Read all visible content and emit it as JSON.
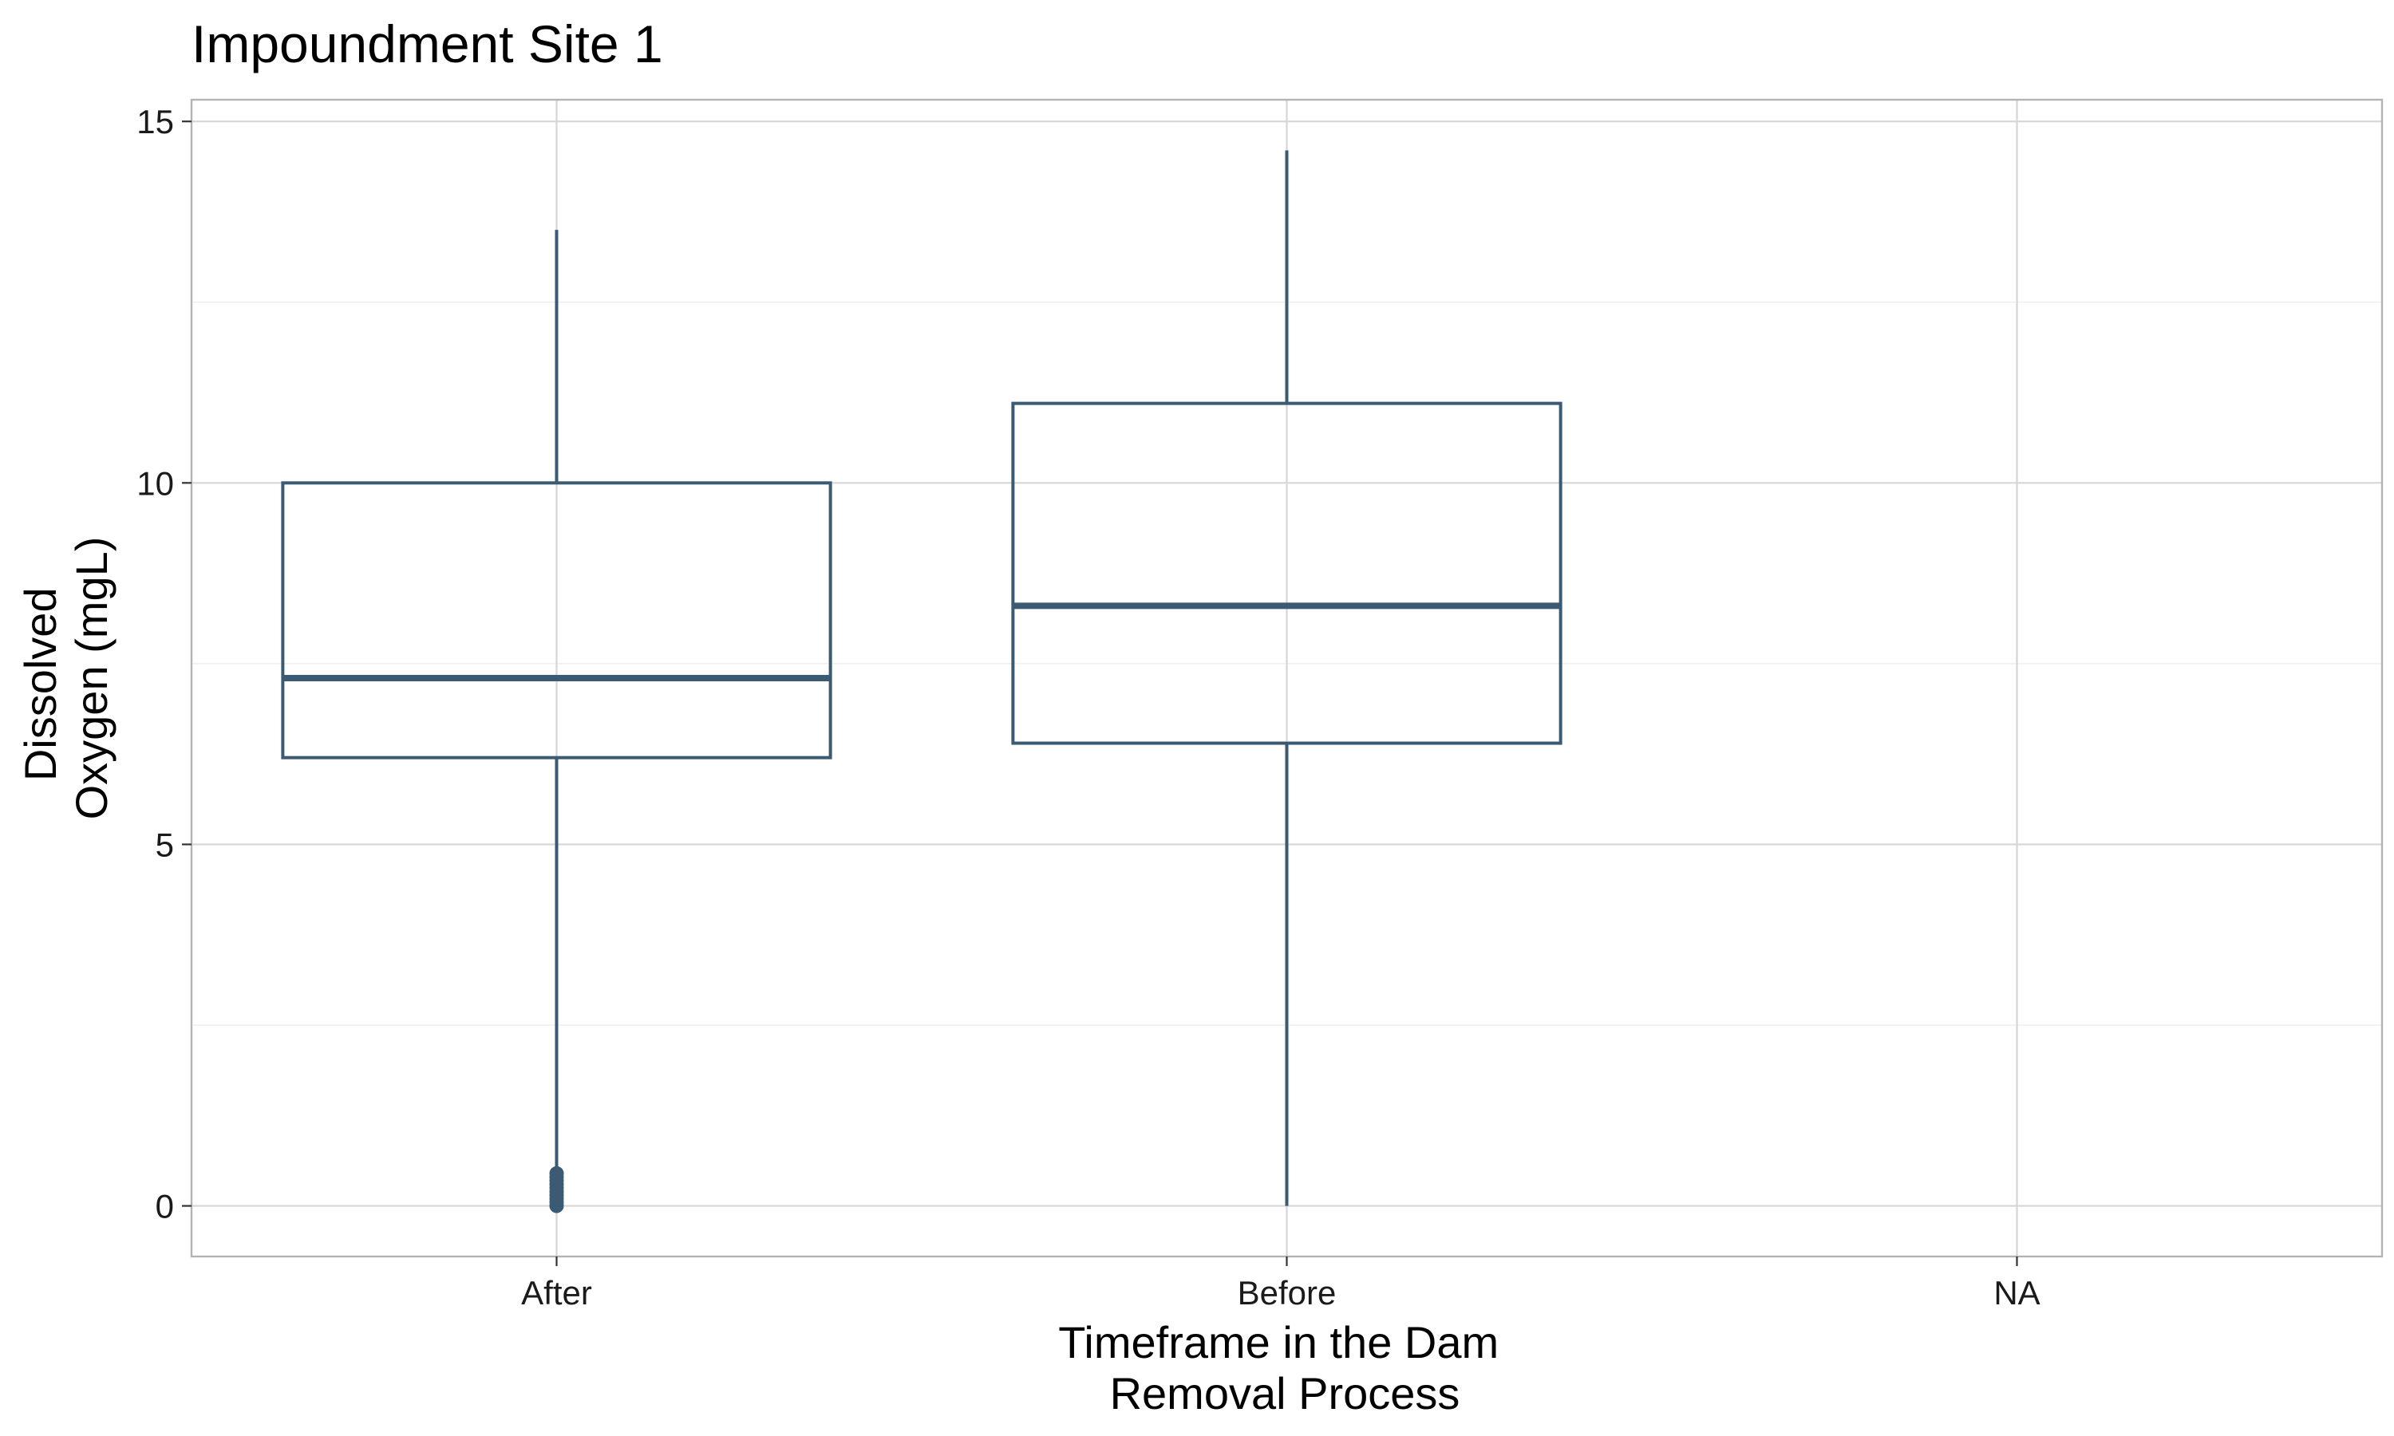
{
  "chart_data": {
    "type": "boxplot",
    "title": "Impoundment Site 1",
    "xlabel": [
      "Timeframe in the Dam",
      "Removal Process"
    ],
    "ylabel": [
      "Dissolved",
      "Oxygen (mgL)"
    ],
    "categories": [
      "After",
      "Before",
      "NA"
    ],
    "ylim": [
      -0.7,
      15.3
    ],
    "yticks": [
      0,
      5,
      10,
      15
    ],
    "grid": true,
    "color": "#3b5a73",
    "boxes": [
      {
        "category": "After",
        "whisker_low": 0.5,
        "q1": 6.2,
        "median": 7.3,
        "q3": 10.0,
        "whisker_high": 13.5,
        "outliers": [
          0.0,
          0.05,
          0.1,
          0.15,
          0.2,
          0.25,
          0.3,
          0.35,
          0.4,
          0.45
        ]
      },
      {
        "category": "Before",
        "whisker_low": 0.0,
        "q1": 6.4,
        "median": 8.3,
        "q3": 11.1,
        "whisker_high": 14.6,
        "outliers": []
      },
      {
        "category": "NA",
        "whisker_low": null,
        "q1": null,
        "median": null,
        "q3": null,
        "whisker_high": null,
        "outliers": []
      }
    ]
  }
}
